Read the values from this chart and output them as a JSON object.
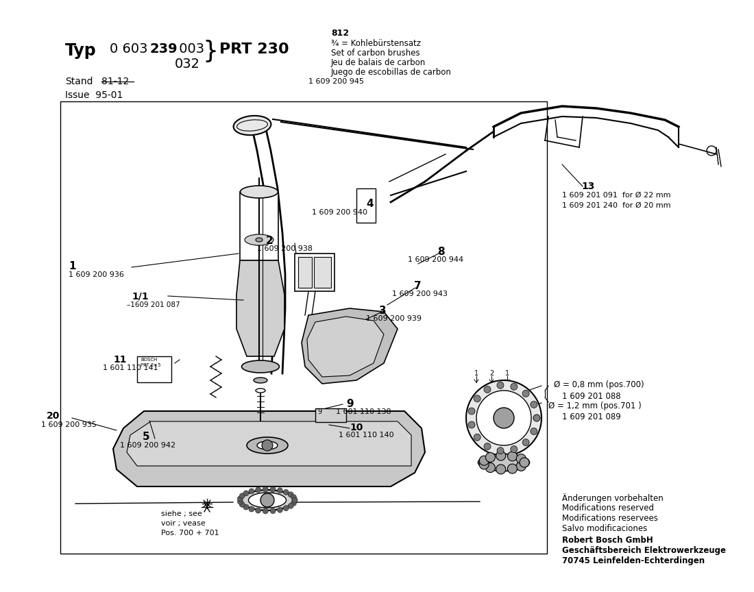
{
  "bg_color": "#ffffff",
  "footer_line1": "Änderungen vorbehalten",
  "footer_line2": "Modifications reserved",
  "footer_line3": "Modifications reservees",
  "footer_line4": "Salvo modificaciones",
  "footer_line5": "Robert Bosch GmbH",
  "footer_line6": "Geschäftsbereich Elektrowerkzeuge",
  "footer_line7": "70745 Leinfelden-Echterdingen"
}
